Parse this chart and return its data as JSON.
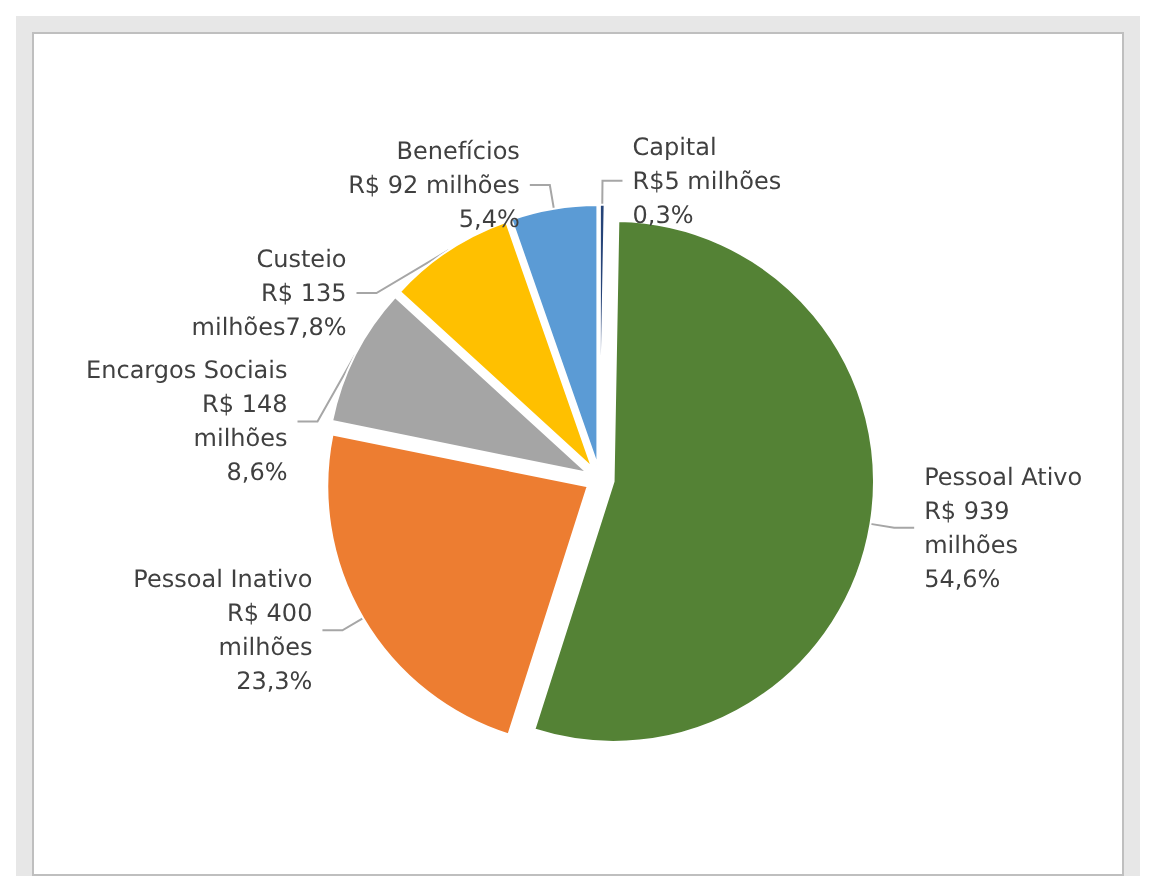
{
  "chart_data": {
    "type": "pie",
    "categories": [
      "Capital",
      "Pessoal Ativo",
      "Pessoal Inativo",
      "Encargos Sociais",
      "Custeio",
      "Benefícios"
    ],
    "values": [
      5,
      939,
      400,
      148,
      135,
      92
    ],
    "colors": [
      "#264478",
      "#548235",
      "#ed7d31",
      "#a5a5a5",
      "#ffc000",
      "#5b9bd5"
    ],
    "value_labels": [
      "R$5 milhões\n0,3%",
      "R$ 939\nmilhões\n54,6%",
      "R$ 400\nmilhões\n23,3%",
      "R$ 148\nmilhões\n8,6%",
      "R$ 135\nmilhões7,8%",
      "R$ 92 milhões\n5,4%"
    ]
  }
}
